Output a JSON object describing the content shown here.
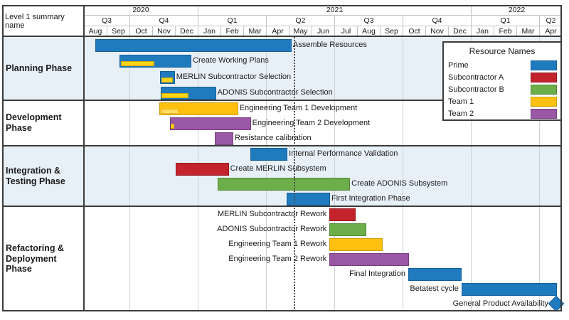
{
  "chart_data": {
    "type": "gantt",
    "corner_label": "Level 1 summary name",
    "timeline": {
      "months": [
        "Aug",
        "Sep",
        "Oct",
        "Nov",
        "Dec",
        "Jan",
        "Feb",
        "Mar",
        "Apr",
        "May",
        "Jun",
        "Jul",
        "Aug",
        "Sep",
        "Oct",
        "Nov",
        "Dec",
        "Jan",
        "Feb",
        "Mar",
        "Apr"
      ],
      "quarters": [
        {
          "label": "Q3",
          "start": 0,
          "end": 2
        },
        {
          "label": "Q4",
          "start": 2,
          "end": 5
        },
        {
          "label": "Q1",
          "start": 5,
          "end": 8
        },
        {
          "label": "Q2",
          "start": 8,
          "end": 11
        },
        {
          "label": "Q3",
          "start": 11,
          "end": 14
        },
        {
          "label": "Q4",
          "start": 14,
          "end": 17
        },
        {
          "label": "Q1",
          "start": 17,
          "end": 20
        },
        {
          "label": "Q2",
          "start": 20,
          "end": 21
        }
      ],
      "years": [
        {
          "label": "2020",
          "start": 0,
          "end": 5
        },
        {
          "label": "2021",
          "start": 5,
          "end": 17
        },
        {
          "label": "2022",
          "start": 17,
          "end": 21
        }
      ],
      "axis_unit": "months from Aug 2020",
      "status_line_month": 9.25
    },
    "legend": {
      "title": "Resource Names",
      "items": [
        {
          "name": "Prime",
          "color": "#1F7BBE",
          "edge": "#14609B"
        },
        {
          "name": "Subcontractor A",
          "color": "#C3242C",
          "edge": "#93161D"
        },
        {
          "name": "Subcontractor B",
          "color": "#6CAE49",
          "edge": "#538835"
        },
        {
          "name": "Team 1",
          "color": "#FFC010",
          "edge": "#D29B00"
        },
        {
          "name": "Team 2",
          "color": "#9A57A5",
          "edge": "#74417D"
        }
      ]
    },
    "phases": [
      {
        "name": "Planning Phase",
        "shaded": true,
        "tasks": [
          {
            "label": "Assemble Resources",
            "start": 0.5,
            "end": 9.06,
            "resource": "Prime",
            "label_side": "right"
          },
          {
            "label": "Create Working Plans",
            "start": 1.56,
            "end": 4.66,
            "resource": "Prime",
            "label_side": "right",
            "overlay": {
              "start": 1.62,
              "end": 3.09,
              "color": "#FFD41A",
              "edge": "#D4A900"
            }
          },
          {
            "label": "MERLIN Subcontractor Selection",
            "start": 3.35,
            "end": 3.93,
            "resource": "Prime",
            "label_side": "right",
            "overlay": {
              "start": 3.4,
              "end": 3.9,
              "color": "#FFD41A",
              "edge": "#D4A900"
            }
          },
          {
            "label": "ADONIS Subcontractor Selection",
            "start": 3.38,
            "end": 5.74,
            "resource": "Prime",
            "label_side": "right",
            "overlay": {
              "start": 3.42,
              "end": 4.6,
              "color": "#FFD41A",
              "edge": "#D4A900"
            }
          }
        ]
      },
      {
        "name": "Development Phase",
        "shaded": false,
        "tasks": [
          {
            "label": "Engineering Team 1 Development",
            "start": 3.31,
            "end": 6.71,
            "resource": "Team 1",
            "label_side": "right",
            "overlay": {
              "start": 3.38,
              "end": 4.16,
              "color": "#FFDC5C",
              "edge": "#E0B52F"
            }
          },
          {
            "label": "Engineering Team 2 Development",
            "start": 3.79,
            "end": 7.27,
            "resource": "Team 2",
            "label_side": "right",
            "overlay": {
              "start": 3.81,
              "end": 3.97,
              "color": "#FFD41A",
              "edge": "#D4A900"
            }
          },
          {
            "label": "Resistance calibration",
            "start": 5.74,
            "end": 6.5,
            "resource": "Team 2",
            "label_side": "right"
          }
        ]
      },
      {
        "name": "Integration & Testing Phase",
        "shaded": true,
        "tasks": [
          {
            "label": "Internal Performance Validation",
            "start": 7.31,
            "end": 8.88,
            "resource": "Prime",
            "label_side": "right"
          },
          {
            "label": "Create MERLIN Subsystem",
            "start": 4.03,
            "end": 6.3,
            "resource": "Subcontractor A",
            "label_side": "right"
          },
          {
            "label": "Create ADONIS Subsystem",
            "start": 5.89,
            "end": 11.63,
            "resource": "Subcontractor B",
            "label_side": "right"
          },
          {
            "label": "First Integration Phase",
            "start": 8.91,
            "end": 10.75,
            "resource": "Prime",
            "label_side": "right"
          }
        ]
      },
      {
        "name": "Refactoring & Deployment Phase",
        "shaded": false,
        "tasks": [
          {
            "label": "MERLIN Subcontractor Rework",
            "start": 10.79,
            "end": 11.88,
            "resource": "Subcontractor A",
            "label_side": "left"
          },
          {
            "label": "ADONIS Subcontractor Rework",
            "start": 10.79,
            "end": 12.35,
            "resource": "Subcontractor B",
            "label_side": "left"
          },
          {
            "label": "Engineering Team 1 Rework",
            "start": 10.79,
            "end": 13.05,
            "resource": "Team 1",
            "label_side": "left"
          },
          {
            "label": "Engineering Team 2 Rework",
            "start": 10.79,
            "end": 14.21,
            "resource": "Team 2",
            "label_side": "left"
          },
          {
            "label": "Final Integration",
            "start": 14.25,
            "end": 16.53,
            "resource": "Prime",
            "label_side": "left"
          },
          {
            "label": "Betatest cycle",
            "start": 16.59,
            "end": 20.72,
            "resource": "Prime",
            "label_side": "left"
          },
          {
            "label": "General Product Availability",
            "milestone": true,
            "at": 20.75,
            "resource": "Prime",
            "label_side": "left"
          }
        ]
      }
    ],
    "colors": {
      "band_shaded": "#E8F0F7",
      "band_plain": "#FFFFFF",
      "grid_light": "#CBD0D4",
      "header_line": "#BFC4C9",
      "border_dark": "#3C3C3C",
      "status_line": "#4d4d4d"
    }
  }
}
